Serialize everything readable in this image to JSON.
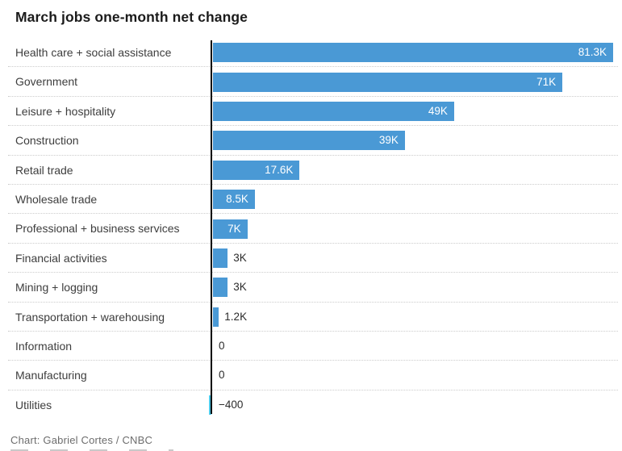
{
  "header": {
    "title": "March jobs one-month net change"
  },
  "footer": {
    "credit": "Chart: Gabriel Cortes / CNBC"
  },
  "colors": {
    "bar_positive": "#4a99d5",
    "bar_negative": "#4cc9e8",
    "axis": "#000000",
    "separator": "#cccccc",
    "title_text": "#1b1b1b",
    "category_text": "#3d3d3d",
    "value_inside_text": "#ffffff",
    "value_outside_text": "#2b2b2b",
    "credit_text": "#6d6d6d"
  },
  "chart_data": {
    "type": "bar",
    "orientation": "horizontal",
    "title": "March jobs one-month net change",
    "xlabel": "",
    "ylabel": "",
    "xlim": [
      -400,
      81300
    ],
    "grid": false,
    "legend": "none",
    "categories": [
      "Health care + social assistance",
      "Government",
      "Leisure + hospitality",
      "Construction",
      "Retail trade",
      "Wholesale trade",
      "Professional + business services",
      "Financial activities",
      "Mining + logging",
      "Transportation + warehousing",
      "Information",
      "Manufacturing",
      "Utilities"
    ],
    "values": [
      81300,
      71000,
      49000,
      39000,
      17600,
      8500,
      7000,
      3000,
      3000,
      1200,
      0,
      0,
      -400
    ],
    "rows": [
      {
        "category": "Health care + social assistance",
        "value": 81300,
        "label": "81.3K"
      },
      {
        "category": "Government",
        "value": 71000,
        "label": "71K"
      },
      {
        "category": "Leisure + hospitality",
        "value": 49000,
        "label": "49K"
      },
      {
        "category": "Construction",
        "value": 39000,
        "label": "39K"
      },
      {
        "category": "Retail trade",
        "value": 17600,
        "label": "17.6K"
      },
      {
        "category": "Wholesale trade",
        "value": 8500,
        "label": "8.5K"
      },
      {
        "category": "Professional + business services",
        "value": 7000,
        "label": "7K"
      },
      {
        "category": "Financial activities",
        "value": 3000,
        "label": "3K"
      },
      {
        "category": "Mining + logging",
        "value": 3000,
        "label": "3K"
      },
      {
        "category": "Transportation + warehousing",
        "value": 1200,
        "label": "1.2K"
      },
      {
        "category": "Information",
        "value": 0,
        "label": "0"
      },
      {
        "category": "Manufacturing",
        "value": 0,
        "label": "0"
      },
      {
        "category": "Utilities",
        "value": -400,
        "label": "−400"
      }
    ]
  }
}
